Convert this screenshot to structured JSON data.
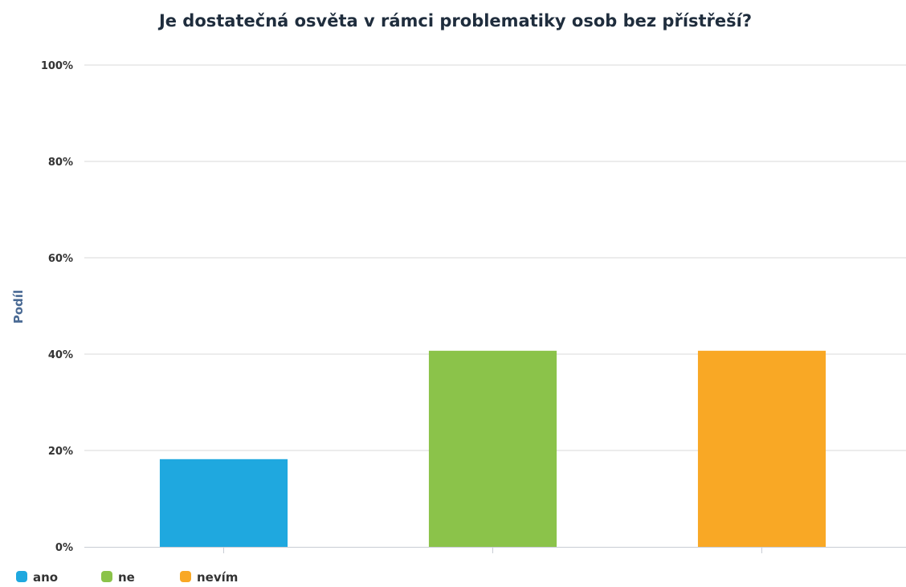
{
  "chart_data": {
    "type": "bar",
    "title": "Je dostatečná osvěta v rámci problematiky osob bez přístřeší?",
    "ylabel": "Podíl",
    "xlabel": "",
    "ylim": [
      0,
      100
    ],
    "y_ticks": [
      0,
      20,
      40,
      60,
      80,
      100
    ],
    "y_tick_labels": [
      "0%",
      "20%",
      "40%",
      "60%",
      "80%",
      "100%"
    ],
    "categories": [
      "ano",
      "ne",
      "nevím"
    ],
    "values": [
      18.2,
      40.7,
      40.7
    ],
    "colors": [
      "#1fa8df",
      "#8bc34a",
      "#f9a825"
    ],
    "grid": true,
    "legend_position": "bottom-left",
    "legend": [
      "ano",
      "ne",
      "nevím"
    ]
  }
}
